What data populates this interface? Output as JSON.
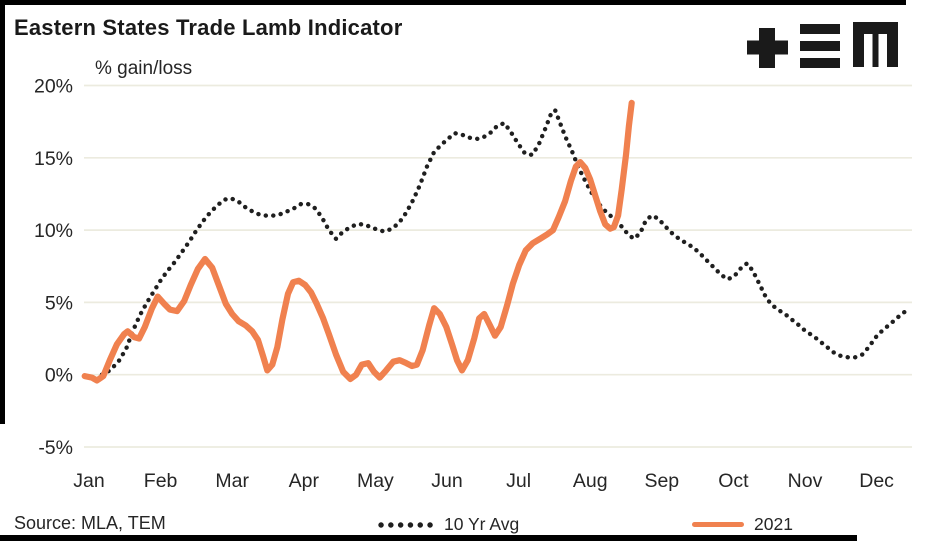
{
  "header": {
    "title": "Eastern States Trade Lamb Indicator"
  },
  "icons": {
    "logo": "tem-plus-bars-m-logo"
  },
  "footer": {
    "source": "Source: MLA, TEM"
  },
  "colors": {
    "accent_orange": "#F0814F",
    "dotted_black": "#1f1f1f",
    "gridline": "#ECEBDF",
    "text": "#262626",
    "border": "#000000"
  },
  "chart_data": {
    "type": "line",
    "title": "Eastern States Trade Lamb Indicator",
    "ylabel": "% gain/loss",
    "xlabel": "",
    "grid": true,
    "legend_position": "bottom",
    "x_axis": {
      "unit": "month_decimal (1=Jan tick ... 12=Dec tick)",
      "labels": [
        "Jan",
        "Feb",
        "Mar",
        "Apr",
        "May",
        "Jun",
        "Jul",
        "Aug",
        "Sep",
        "Oct",
        "Nov",
        "Dec"
      ]
    },
    "y_axis": {
      "ticks": [
        "20%",
        "15%",
        "10%",
        "5%",
        "0%",
        "-5%"
      ],
      "tick_values": [
        20,
        15,
        10,
        5,
        0,
        -5
      ],
      "range": [
        -5,
        20
      ]
    },
    "series": [
      {
        "name": "10 Yr Avg",
        "style": "dotted",
        "color": "#1f1f1f",
        "points": [
          [
            1.18,
            0.0
          ],
          [
            1.29,
            0.3
          ],
          [
            1.41,
            0.9
          ],
          [
            1.52,
            1.8
          ],
          [
            1.61,
            3.0
          ],
          [
            1.71,
            4.1
          ],
          [
            1.81,
            5.0
          ],
          [
            1.91,
            5.8
          ],
          [
            2.01,
            6.6
          ],
          [
            2.1,
            7.2
          ],
          [
            2.2,
            7.8
          ],
          [
            2.3,
            8.5
          ],
          [
            2.4,
            9.2
          ],
          [
            2.49,
            9.9
          ],
          [
            2.59,
            10.6
          ],
          [
            2.69,
            11.2
          ],
          [
            2.79,
            11.7
          ],
          [
            2.89,
            12.1
          ],
          [
            2.98,
            12.2
          ],
          [
            3.08,
            12.0
          ],
          [
            3.18,
            11.6
          ],
          [
            3.28,
            11.3
          ],
          [
            3.37,
            11.1
          ],
          [
            3.47,
            11.0
          ],
          [
            3.57,
            11.0
          ],
          [
            3.67,
            11.1
          ],
          [
            3.77,
            11.3
          ],
          [
            3.86,
            11.5
          ],
          [
            3.96,
            11.8
          ],
          [
            4.06,
            11.8
          ],
          [
            4.16,
            11.5
          ],
          [
            4.25,
            10.9
          ],
          [
            4.35,
            10.0
          ],
          [
            4.45,
            9.4
          ],
          [
            4.55,
            9.9
          ],
          [
            4.65,
            10.2
          ],
          [
            4.74,
            10.4
          ],
          [
            4.84,
            10.4
          ],
          [
            4.94,
            10.2
          ],
          [
            5.04,
            10.0
          ],
          [
            5.13,
            9.9
          ],
          [
            5.23,
            10.1
          ],
          [
            5.33,
            10.5
          ],
          [
            5.43,
            11.2
          ],
          [
            5.53,
            12.1
          ],
          [
            5.62,
            13.1
          ],
          [
            5.72,
            14.4
          ],
          [
            5.82,
            15.4
          ],
          [
            5.92,
            15.9
          ],
          [
            6.01,
            16.3
          ],
          [
            6.11,
            16.7
          ],
          [
            6.21,
            16.6
          ],
          [
            6.31,
            16.4
          ],
          [
            6.41,
            16.3
          ],
          [
            6.5,
            16.4
          ],
          [
            6.6,
            16.7
          ],
          [
            6.7,
            17.2
          ],
          [
            6.8,
            17.4
          ],
          [
            6.89,
            16.8
          ],
          [
            6.99,
            16.0
          ],
          [
            7.09,
            15.3
          ],
          [
            7.19,
            15.2
          ],
          [
            7.28,
            15.9
          ],
          [
            7.38,
            17.1
          ],
          [
            7.45,
            18.0
          ],
          [
            7.51,
            18.3
          ],
          [
            7.58,
            17.4
          ],
          [
            7.65,
            16.5
          ],
          [
            7.75,
            15.4
          ],
          [
            7.84,
            14.3
          ],
          [
            7.94,
            13.3
          ],
          [
            8.04,
            12.4
          ],
          [
            8.14,
            11.7
          ],
          [
            8.23,
            11.2
          ],
          [
            8.33,
            10.8
          ],
          [
            8.43,
            10.3
          ],
          [
            8.53,
            9.7
          ],
          [
            8.61,
            9.4
          ],
          [
            8.7,
            9.8
          ],
          [
            8.78,
            10.7
          ],
          [
            8.86,
            11.0
          ],
          [
            8.95,
            10.8
          ],
          [
            9.04,
            10.3
          ],
          [
            9.14,
            9.8
          ],
          [
            9.24,
            9.4
          ],
          [
            9.34,
            9.1
          ],
          [
            9.44,
            8.8
          ],
          [
            9.53,
            8.4
          ],
          [
            9.63,
            7.9
          ],
          [
            9.73,
            7.4
          ],
          [
            9.83,
            6.9
          ],
          [
            9.92,
            6.6
          ],
          [
            10.01,
            6.8
          ],
          [
            10.11,
            7.4
          ],
          [
            10.19,
            7.7
          ],
          [
            10.27,
            7.2
          ],
          [
            10.36,
            6.3
          ],
          [
            10.44,
            5.5
          ],
          [
            10.52,
            4.9
          ],
          [
            10.62,
            4.5
          ],
          [
            10.72,
            4.2
          ],
          [
            10.82,
            3.8
          ],
          [
            10.92,
            3.4
          ],
          [
            11.01,
            3.0
          ],
          [
            11.11,
            2.7
          ],
          [
            11.21,
            2.3
          ],
          [
            11.31,
            1.9
          ],
          [
            11.41,
            1.5
          ],
          [
            11.5,
            1.3
          ],
          [
            11.6,
            1.2
          ],
          [
            11.7,
            1.2
          ],
          [
            11.8,
            1.4
          ],
          [
            11.89,
            1.9
          ],
          [
            11.99,
            2.6
          ],
          [
            12.09,
            3.1
          ],
          [
            12.19,
            3.5
          ],
          [
            12.28,
            3.9
          ],
          [
            12.38,
            4.3
          ],
          [
            12.47,
            4.6
          ]
        ]
      },
      {
        "name": "2021",
        "style": "solid",
        "color": "#F0814F",
        "points": [
          [
            0.94,
            -0.1
          ],
          [
            1.04,
            -0.2
          ],
          [
            1.11,
            -0.4
          ],
          [
            1.2,
            -0.1
          ],
          [
            1.29,
            1.0
          ],
          [
            1.39,
            2.1
          ],
          [
            1.49,
            2.8
          ],
          [
            1.54,
            3.0
          ],
          [
            1.63,
            2.6
          ],
          [
            1.7,
            2.5
          ],
          [
            1.78,
            3.3
          ],
          [
            1.88,
            4.6
          ],
          [
            1.96,
            5.4
          ],
          [
            2.05,
            4.9
          ],
          [
            2.13,
            4.5
          ],
          [
            2.23,
            4.4
          ],
          [
            2.33,
            5.1
          ],
          [
            2.42,
            6.2
          ],
          [
            2.52,
            7.3
          ],
          [
            2.62,
            8.0
          ],
          [
            2.72,
            7.4
          ],
          [
            2.82,
            6.1
          ],
          [
            2.91,
            4.9
          ],
          [
            3.0,
            4.2
          ],
          [
            3.09,
            3.7
          ],
          [
            3.19,
            3.4
          ],
          [
            3.28,
            3.0
          ],
          [
            3.36,
            2.4
          ],
          [
            3.43,
            1.3
          ],
          [
            3.49,
            0.3
          ],
          [
            3.56,
            0.7
          ],
          [
            3.63,
            1.9
          ],
          [
            3.7,
            3.8
          ],
          [
            3.78,
            5.6
          ],
          [
            3.85,
            6.4
          ],
          [
            3.93,
            6.5
          ],
          [
            4.02,
            6.2
          ],
          [
            4.1,
            5.7
          ],
          [
            4.18,
            4.9
          ],
          [
            4.27,
            3.9
          ],
          [
            4.35,
            2.8
          ],
          [
            4.45,
            1.4
          ],
          [
            4.55,
            0.2
          ],
          [
            4.65,
            -0.3
          ],
          [
            4.73,
            0.0
          ],
          [
            4.81,
            0.7
          ],
          [
            4.9,
            0.8
          ],
          [
            4.98,
            0.2
          ],
          [
            5.06,
            -0.2
          ],
          [
            5.15,
            0.3
          ],
          [
            5.25,
            0.9
          ],
          [
            5.34,
            1.0
          ],
          [
            5.43,
            0.8
          ],
          [
            5.51,
            0.6
          ],
          [
            5.58,
            0.7
          ],
          [
            5.66,
            1.7
          ],
          [
            5.75,
            3.4
          ],
          [
            5.82,
            4.6
          ],
          [
            5.9,
            4.2
          ],
          [
            5.99,
            3.3
          ],
          [
            6.07,
            2.1
          ],
          [
            6.14,
            1.0
          ],
          [
            6.21,
            0.3
          ],
          [
            6.29,
            1.0
          ],
          [
            6.38,
            2.5
          ],
          [
            6.45,
            3.9
          ],
          [
            6.52,
            4.2
          ],
          [
            6.6,
            3.4
          ],
          [
            6.67,
            2.7
          ],
          [
            6.75,
            3.3
          ],
          [
            6.84,
            4.8
          ],
          [
            6.92,
            6.3
          ],
          [
            7.01,
            7.6
          ],
          [
            7.1,
            8.6
          ],
          [
            7.2,
            9.1
          ],
          [
            7.3,
            9.4
          ],
          [
            7.4,
            9.7
          ],
          [
            7.48,
            10.0
          ],
          [
            7.56,
            10.9
          ],
          [
            7.65,
            12.0
          ],
          [
            7.73,
            13.4
          ],
          [
            7.8,
            14.4
          ],
          [
            7.86,
            14.7
          ],
          [
            7.93,
            14.3
          ],
          [
            8.0,
            13.5
          ],
          [
            8.07,
            12.4
          ],
          [
            8.14,
            11.3
          ],
          [
            8.21,
            10.4
          ],
          [
            8.28,
            10.1
          ],
          [
            8.33,
            10.2
          ],
          [
            8.39,
            11.0
          ],
          [
            8.44,
            12.8
          ],
          [
            8.5,
            15.2
          ],
          [
            8.54,
            17.2
          ],
          [
            8.58,
            18.8
          ]
        ]
      }
    ]
  }
}
